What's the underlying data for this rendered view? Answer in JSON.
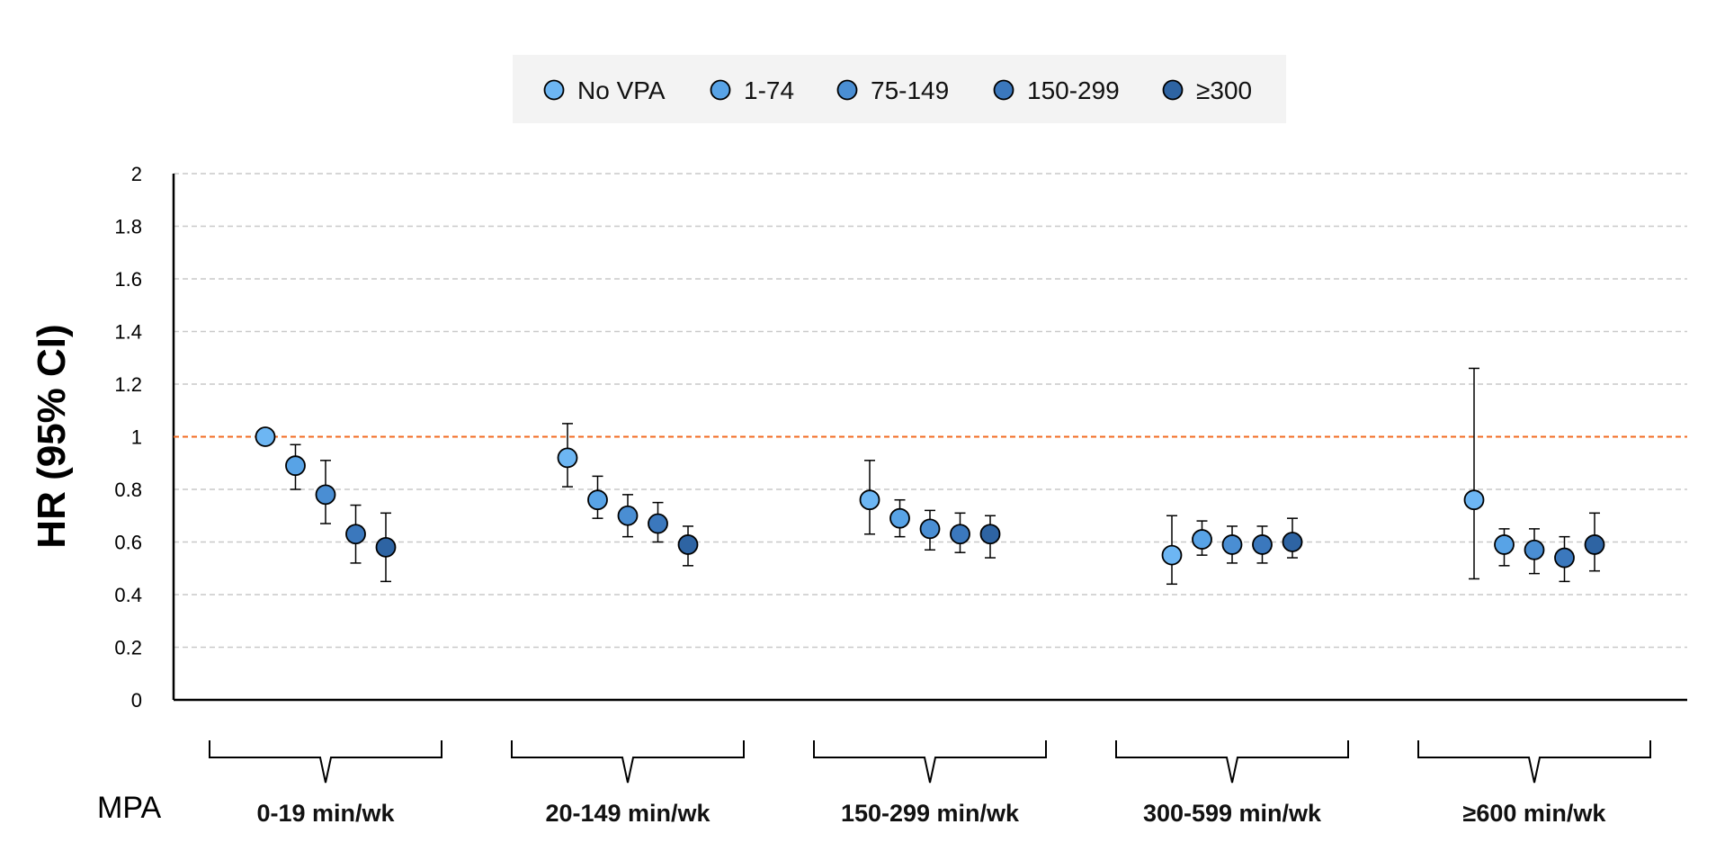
{
  "chart_data": {
    "type": "scatter",
    "subtype": "forest-plot-with-error-bars",
    "ylabel": "HR (95% CI)",
    "xlabel": "MPA",
    "ylim": [
      0,
      2
    ],
    "yticks": [
      "0",
      "0.2",
      "0.4",
      "0.6",
      "0.8",
      "1",
      "1.2",
      "1.4",
      "1.6",
      "1.8",
      "2"
    ],
    "reference_line": {
      "y": 1.0,
      "color": "#F26B21",
      "style": "dashed"
    },
    "grid": true,
    "legend": {
      "placement": "top-center"
    },
    "categories": [
      "0-19 min/wk",
      "20-149 min/wk",
      "150-299 min/wk",
      "300-599 min/wk",
      "≥600 min/wk"
    ],
    "series": [
      {
        "name": "No VPA",
        "color": "#6DB6F3",
        "values": [
          1.0,
          0.92,
          0.76,
          0.55,
          0.76
        ],
        "lower": [
          1.0,
          0.81,
          0.63,
          0.44,
          0.46
        ],
        "upper": [
          1.0,
          1.05,
          0.91,
          0.7,
          1.26
        ]
      },
      {
        "name": "1-74",
        "color": "#58A3E6",
        "values": [
          0.89,
          0.76,
          0.69,
          0.61,
          0.59
        ],
        "lower": [
          0.8,
          0.69,
          0.62,
          0.55,
          0.51
        ],
        "upper": [
          0.97,
          0.85,
          0.76,
          0.68,
          0.65
        ]
      },
      {
        "name": "75-149",
        "color": "#4A8ED3",
        "values": [
          0.78,
          0.7,
          0.65,
          0.59,
          0.57
        ],
        "lower": [
          0.67,
          0.62,
          0.57,
          0.52,
          0.48
        ],
        "upper": [
          0.91,
          0.78,
          0.72,
          0.66,
          0.65
        ]
      },
      {
        "name": "150-299",
        "color": "#3B78BD",
        "values": [
          0.63,
          0.67,
          0.63,
          0.59,
          0.54
        ],
        "lower": [
          0.52,
          0.6,
          0.56,
          0.52,
          0.45
        ],
        "upper": [
          0.74,
          0.75,
          0.71,
          0.66,
          0.62
        ]
      },
      {
        "name": "≥300",
        "color": "#2E64A3",
        "values": [
          0.58,
          0.59,
          0.63,
          0.6,
          0.59
        ],
        "lower": [
          0.45,
          0.51,
          0.54,
          0.54,
          0.49
        ],
        "upper": [
          0.71,
          0.66,
          0.7,
          0.69,
          0.71
        ]
      }
    ]
  }
}
